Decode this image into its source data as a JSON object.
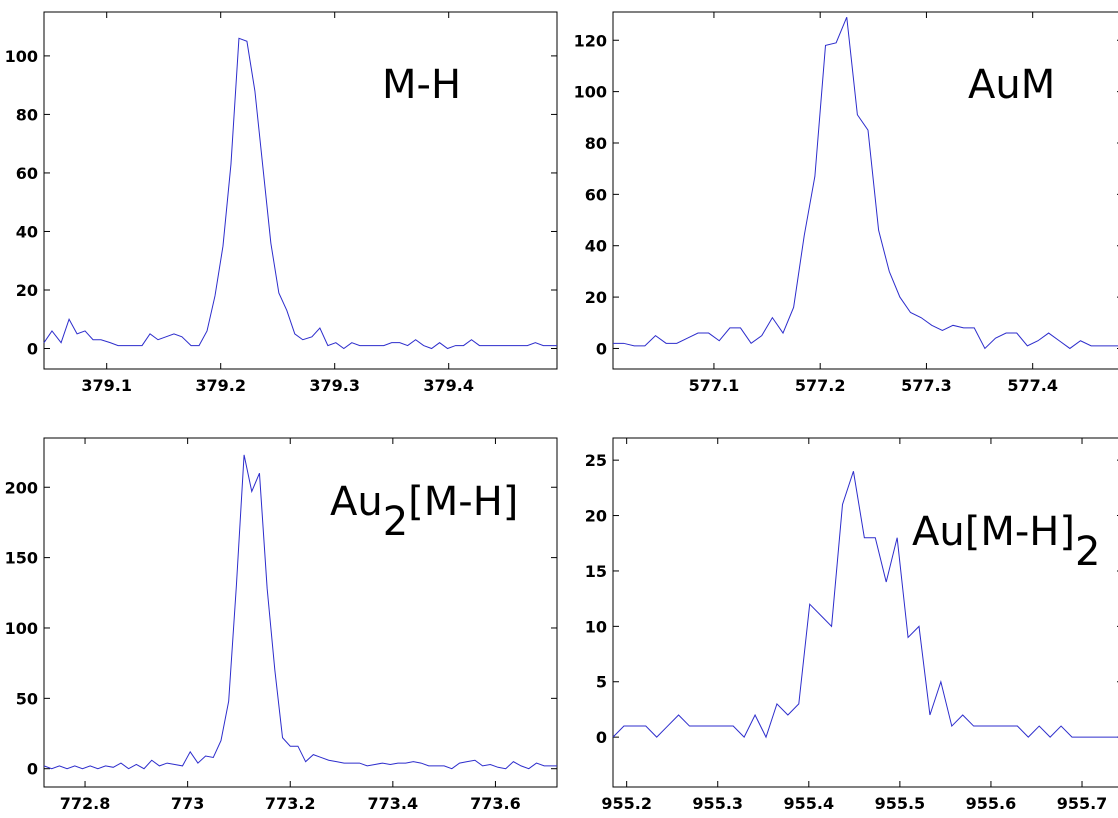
{
  "chart_data": [
    {
      "type": "line",
      "label": "M-H",
      "xlim": [
        379.045,
        379.495
      ],
      "ylim": [
        -7,
        115
      ],
      "xticks": [
        379.1,
        379.2,
        379.3,
        379.4
      ],
      "xtick_labels": [
        "379.1",
        "379.2",
        "379.3",
        "379.4"
      ],
      "yticks": [
        0,
        20,
        40,
        60,
        80,
        100
      ],
      "ytick_labels": [
        "0",
        "20",
        "40",
        "60",
        "80",
        "100"
      ],
      "x": [
        379.045,
        379.052,
        379.06,
        379.067,
        379.074,
        379.081,
        379.088,
        379.095,
        379.103,
        379.11,
        379.117,
        379.124,
        379.131,
        379.138,
        379.145,
        379.152,
        379.159,
        379.166,
        379.174,
        379.181,
        379.188,
        379.195,
        379.202,
        379.209,
        379.216,
        379.223,
        379.23,
        379.237,
        379.244,
        379.251,
        379.258,
        379.265,
        379.272,
        379.28,
        379.287,
        379.294,
        379.301,
        379.308,
        379.315,
        379.322,
        379.329,
        379.336,
        379.343,
        379.35,
        379.357,
        379.364,
        379.371,
        379.378,
        379.385,
        379.392,
        379.399,
        379.406,
        379.413,
        379.42,
        379.427,
        379.434,
        379.441,
        379.448,
        379.455,
        379.462,
        379.469,
        379.476,
        379.483,
        379.49,
        379.495
      ],
      "y": [
        2,
        6,
        2,
        10,
        5,
        6,
        3,
        3,
        2,
        1,
        1,
        1,
        1,
        5,
        3,
        4,
        5,
        4,
        1,
        1,
        6,
        18,
        35,
        63,
        106,
        105,
        88,
        62,
        36,
        19,
        13,
        5,
        3,
        4,
        7,
        1,
        2,
        0,
        2,
        1,
        1,
        1,
        1,
        2,
        2,
        1,
        3,
        1,
        0,
        2,
        0,
        1,
        1,
        3,
        1,
        1,
        1,
        1,
        1,
        1,
        1,
        2,
        1,
        1,
        1
      ]
    },
    {
      "type": "line",
      "label": "AuM",
      "xlim": [
        577.005,
        577.485
      ],
      "ylim": [
        -8,
        131
      ],
      "xticks": [
        577.1,
        577.2,
        577.3,
        577.4
      ],
      "xtick_labels": [
        "577.1",
        "577.2",
        "577.3",
        "577.4"
      ],
      "yticks": [
        0,
        20,
        40,
        60,
        80,
        100,
        120
      ],
      "ytick_labels": [
        "0",
        "20",
        "40",
        "60",
        "80",
        "100",
        "120"
      ],
      "x": [
        577.005,
        577.015,
        577.025,
        577.035,
        577.045,
        577.055,
        577.065,
        577.075,
        577.085,
        577.095,
        577.105,
        577.115,
        577.125,
        577.135,
        577.145,
        577.155,
        577.165,
        577.175,
        577.185,
        577.195,
        577.205,
        577.215,
        577.225,
        577.235,
        577.245,
        577.255,
        577.265,
        577.275,
        577.285,
        577.295,
        577.305,
        577.315,
        577.325,
        577.335,
        577.345,
        577.355,
        577.365,
        577.375,
        577.385,
        577.395,
        577.405,
        577.415,
        577.425,
        577.435,
        577.445,
        577.455,
        577.465,
        577.475,
        577.485
      ],
      "y": [
        2,
        2,
        1,
        1,
        5,
        2,
        2,
        4,
        6,
        6,
        3,
        8,
        8,
        2,
        5,
        12,
        6,
        16,
        44,
        67,
        118,
        119,
        129,
        91,
        85,
        46,
        30,
        20,
        14,
        12,
        9,
        7,
        9,
        8,
        8,
        0,
        4,
        6,
        6,
        1,
        3,
        6,
        3,
        0,
        3,
        1,
        1,
        1,
        1
      ]
    },
    {
      "type": "line",
      "label": "Au2[M-H]",
      "xlim": [
        772.72,
        773.72
      ],
      "ylim": [
        -13,
        235
      ],
      "xticks": [
        772.8,
        773.0,
        773.2,
        773.4,
        773.6
      ],
      "xtick_labels": [
        "772.8",
        "773",
        "773.2",
        "773.4",
        "773.6"
      ],
      "yticks": [
        0,
        50,
        100,
        150,
        200
      ],
      "ytick_labels": [
        "0",
        "50",
        "100",
        "150",
        "200"
      ],
      "x": [
        772.72,
        772.735,
        772.75,
        772.765,
        772.78,
        772.795,
        772.81,
        772.825,
        772.84,
        772.855,
        772.87,
        772.885,
        772.9,
        772.915,
        772.93,
        772.945,
        772.96,
        772.975,
        772.99,
        773.005,
        773.02,
        773.035,
        773.05,
        773.065,
        773.08,
        773.095,
        773.11,
        773.125,
        773.14,
        773.155,
        773.17,
        773.185,
        773.2,
        773.215,
        773.23,
        773.245,
        773.26,
        773.275,
        773.29,
        773.305,
        773.32,
        773.335,
        773.35,
        773.365,
        773.38,
        773.395,
        773.41,
        773.425,
        773.44,
        773.455,
        773.47,
        773.485,
        773.5,
        773.515,
        773.53,
        773.545,
        773.56,
        773.575,
        773.59,
        773.605,
        773.62,
        773.635,
        773.65,
        773.665,
        773.68,
        773.695,
        773.71,
        773.72
      ],
      "y": [
        2,
        0,
        2,
        0,
        2,
        0,
        2,
        0,
        2,
        1,
        4,
        0,
        3,
        0,
        6,
        2,
        4,
        3,
        2,
        12,
        4,
        9,
        8,
        20,
        48,
        130,
        223,
        197,
        210,
        128,
        70,
        22,
        16,
        16,
        5,
        10,
        8,
        6,
        5,
        4,
        4,
        4,
        2,
        3,
        4,
        3,
        4,
        4,
        5,
        4,
        2,
        2,
        2,
        0,
        4,
        5,
        6,
        2,
        3,
        1,
        0,
        5,
        2,
        0,
        4,
        2,
        2,
        2
      ]
    },
    {
      "type": "line",
      "label": "Au[M-H]2",
      "xlim": [
        955.185,
        955.745
      ],
      "ylim": [
        -4.5,
        27
      ],
      "xticks": [
        955.2,
        955.3,
        955.4,
        955.5,
        955.6,
        955.7
      ],
      "xtick_labels": [
        "955.2",
        "955.3",
        "955.4",
        "955.5",
        "955.6",
        "955.7"
      ],
      "yticks": [
        0,
        5,
        10,
        15,
        20,
        25
      ],
      "ytick_labels": [
        "0",
        "5",
        "10",
        "15",
        "20",
        "25"
      ],
      "x": [
        955.185,
        955.197,
        955.209,
        955.221,
        955.233,
        955.245,
        955.257,
        955.269,
        955.281,
        955.293,
        955.305,
        955.317,
        955.329,
        955.341,
        955.353,
        955.365,
        955.377,
        955.389,
        955.401,
        955.413,
        955.425,
        955.437,
        955.449,
        955.461,
        955.473,
        955.485,
        955.497,
        955.509,
        955.521,
        955.533,
        955.545,
        955.557,
        955.569,
        955.581,
        955.593,
        955.605,
        955.617,
        955.629,
        955.641,
        955.653,
        955.665,
        955.677,
        955.689,
        955.701,
        955.713,
        955.725,
        955.737,
        955.745
      ],
      "y": [
        0,
        1,
        1,
        1,
        0,
        1,
        2,
        1,
        1,
        1,
        1,
        1,
        0,
        2,
        0,
        3,
        2,
        3,
        12,
        11,
        10,
        21,
        24,
        18,
        18,
        14,
        18,
        9,
        10,
        2,
        5,
        1,
        2,
        1,
        1,
        1,
        1,
        1,
        0,
        1,
        0,
        1,
        0,
        0,
        0,
        0,
        0,
        0
      ]
    }
  ]
}
